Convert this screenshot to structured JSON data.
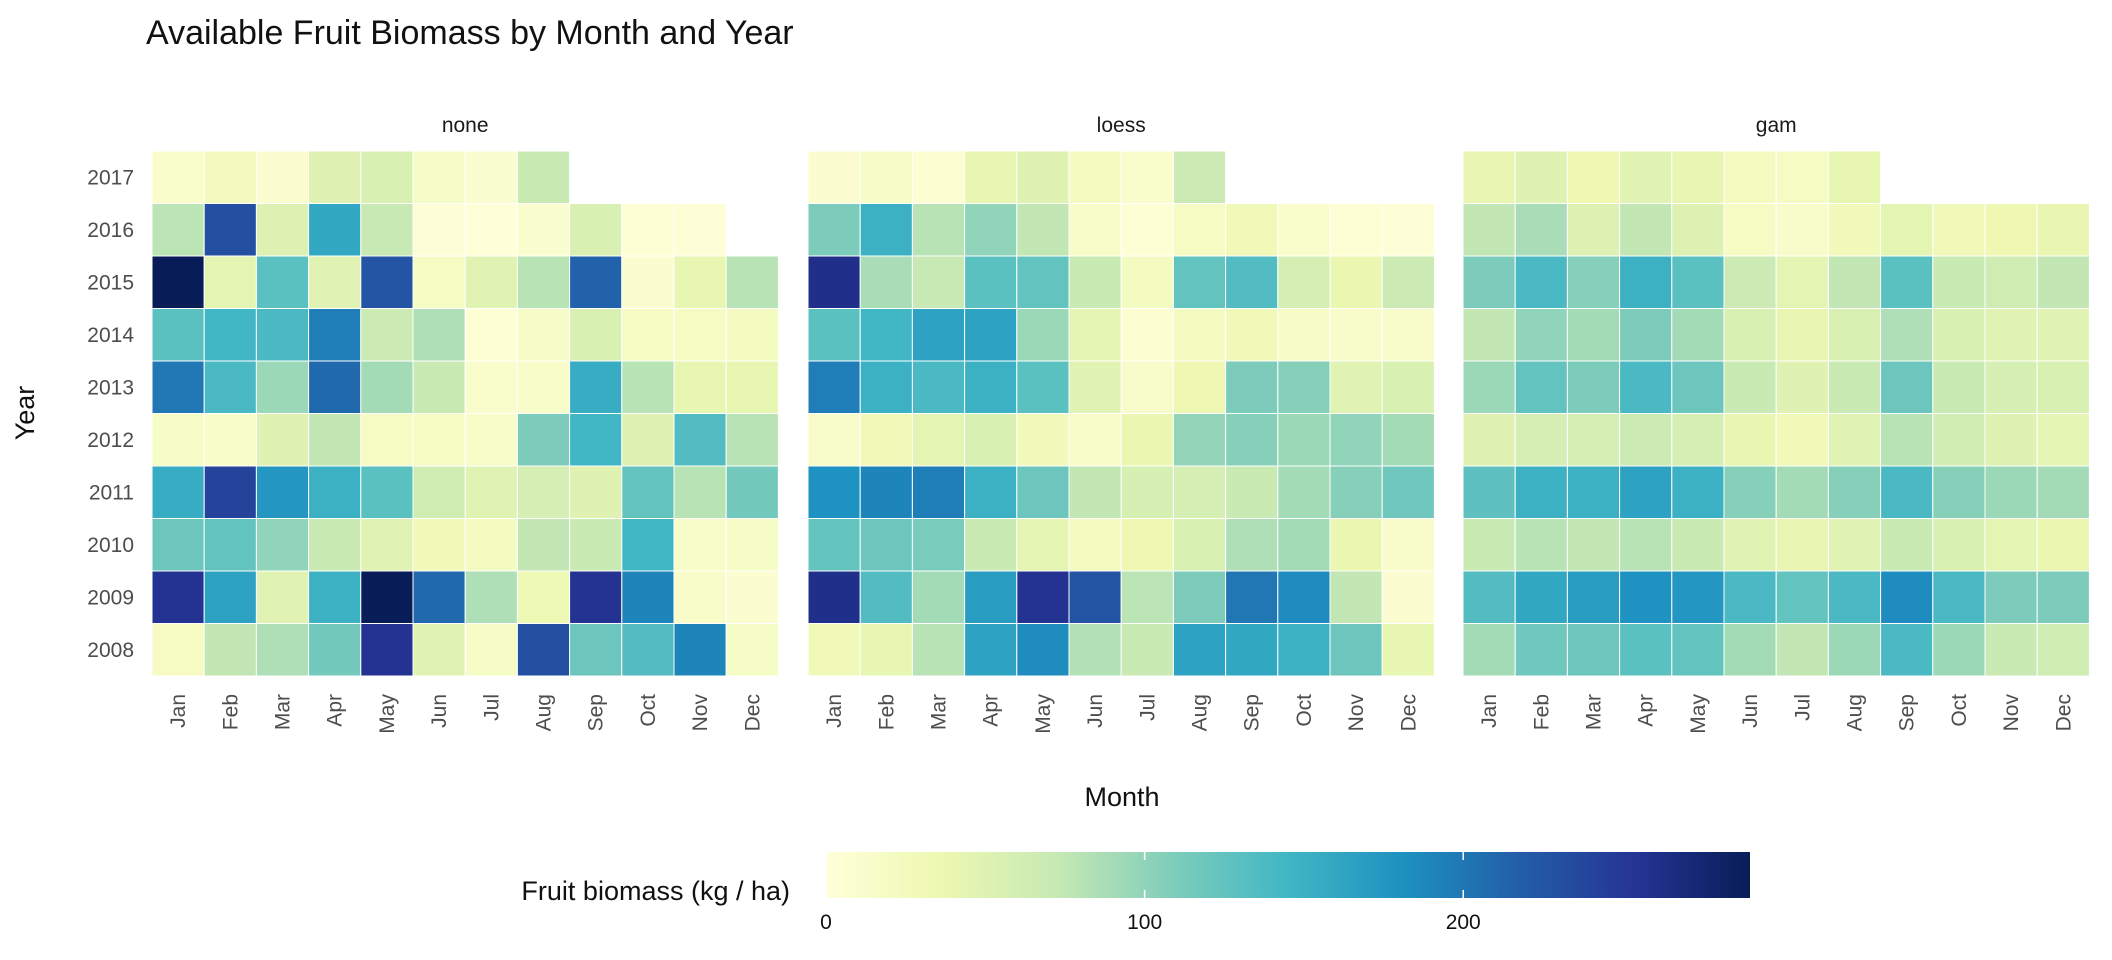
{
  "chart_data": {
    "type": "heatmap",
    "title": "Available Fruit Biomass by Month and Year",
    "xlabel": "Month",
    "ylabel": "Year",
    "months": [
      "Jan",
      "Feb",
      "Mar",
      "Apr",
      "May",
      "Jun",
      "Jul",
      "Aug",
      "Sep",
      "Oct",
      "Nov",
      "Dec"
    ],
    "years": [
      "2017",
      "2016",
      "2015",
      "2014",
      "2013",
      "2012",
      "2011",
      "2010",
      "2009",
      "2008"
    ],
    "panels": [
      {
        "name": "none",
        "values": [
          [
            12,
            25,
            8,
            50,
            55,
            18,
            10,
            70,
            null,
            null,
            null,
            null
          ],
          [
            78,
            230,
            52,
            160,
            72,
            3,
            2,
            10,
            55,
            5,
            3,
            null
          ],
          [
            290,
            45,
            130,
            48,
            225,
            20,
            48,
            80,
            215,
            8,
            42,
            80
          ],
          [
            130,
            145,
            140,
            195,
            68,
            85,
            5,
            18,
            55,
            20,
            20,
            22
          ],
          [
            200,
            140,
            95,
            210,
            90,
            70,
            12,
            15,
            155,
            80,
            42,
            42
          ],
          [
            18,
            15,
            50,
            75,
            20,
            20,
            15,
            110,
            145,
            50,
            135,
            80
          ],
          [
            155,
            240,
            175,
            150,
            130,
            65,
            48,
            60,
            50,
            125,
            80,
            115
          ],
          [
            120,
            125,
            100,
            70,
            48,
            30,
            22,
            75,
            70,
            145,
            15,
            18
          ],
          [
            255,
            165,
            48,
            150,
            295,
            210,
            85,
            32,
            255,
            190,
            15,
            8
          ],
          [
            20,
            75,
            85,
            115,
            255,
            48,
            18,
            230,
            120,
            135,
            190,
            18
          ]
        ]
      },
      {
        "name": "loess",
        "values": [
          [
            8,
            18,
            6,
            40,
            50,
            22,
            12,
            68,
            null,
            null,
            null,
            null
          ],
          [
            110,
            150,
            80,
            100,
            75,
            15,
            5,
            20,
            30,
            12,
            5,
            4
          ],
          [
            260,
            88,
            72,
            130,
            125,
            70,
            22,
            125,
            135,
            60,
            38,
            68
          ],
          [
            130,
            145,
            165,
            165,
            95,
            45,
            6,
            22,
            30,
            18,
            14,
            14
          ],
          [
            195,
            150,
            140,
            150,
            130,
            48,
            14,
            35,
            110,
            105,
            48,
            55
          ],
          [
            14,
            30,
            45,
            55,
            28,
            15,
            38,
            98,
            105,
            95,
            100,
            90
          ],
          [
            180,
            190,
            195,
            150,
            120,
            75,
            58,
            60,
            70,
            90,
            105,
            118
          ],
          [
            125,
            120,
            112,
            70,
            45,
            22,
            35,
            55,
            85,
            90,
            38,
            14
          ],
          [
            260,
            135,
            90,
            170,
            255,
            225,
            78,
            110,
            200,
            185,
            75,
            8
          ],
          [
            30,
            42,
            80,
            165,
            185,
            82,
            70,
            165,
            160,
            150,
            120,
            42
          ]
        ]
      },
      {
        "name": "gam",
        "values": [
          [
            40,
            50,
            35,
            48,
            40,
            22,
            20,
            42,
            null,
            null,
            null,
            null
          ],
          [
            75,
            88,
            52,
            75,
            52,
            20,
            14,
            28,
            45,
            30,
            35,
            40
          ],
          [
            110,
            140,
            105,
            150,
            130,
            68,
            45,
            75,
            130,
            70,
            65,
            75
          ],
          [
            75,
            100,
            90,
            110,
            90,
            55,
            40,
            55,
            85,
            55,
            48,
            48
          ],
          [
            95,
            125,
            110,
            140,
            120,
            70,
            50,
            70,
            120,
            70,
            58,
            55
          ],
          [
            50,
            60,
            60,
            68,
            60,
            40,
            30,
            48,
            80,
            62,
            50,
            45
          ],
          [
            128,
            150,
            150,
            165,
            150,
            105,
            90,
            105,
            140,
            105,
            95,
            90
          ],
          [
            70,
            80,
            75,
            80,
            70,
            48,
            40,
            48,
            70,
            55,
            45,
            38
          ],
          [
            135,
            160,
            170,
            180,
            175,
            140,
            125,
            140,
            185,
            140,
            110,
            110
          ],
          [
            90,
            118,
            120,
            130,
            125,
            90,
            75,
            95,
            140,
            95,
            70,
            65
          ]
        ]
      }
    ],
    "legend": {
      "title": "Fruit biomass (kg / ha)",
      "min": 0,
      "max": 290,
      "ticks": [
        0,
        100,
        200
      ],
      "placement": "bottom"
    },
    "colors": {
      "scale": [
        "#ffffd9",
        "#edf8b1",
        "#c7e9b4",
        "#7fcdbb",
        "#41b6c4",
        "#1d91c0",
        "#225ea8",
        "#253494",
        "#081d58"
      ],
      "background": "#ffffff",
      "cell_border": "#ffffff"
    }
  }
}
